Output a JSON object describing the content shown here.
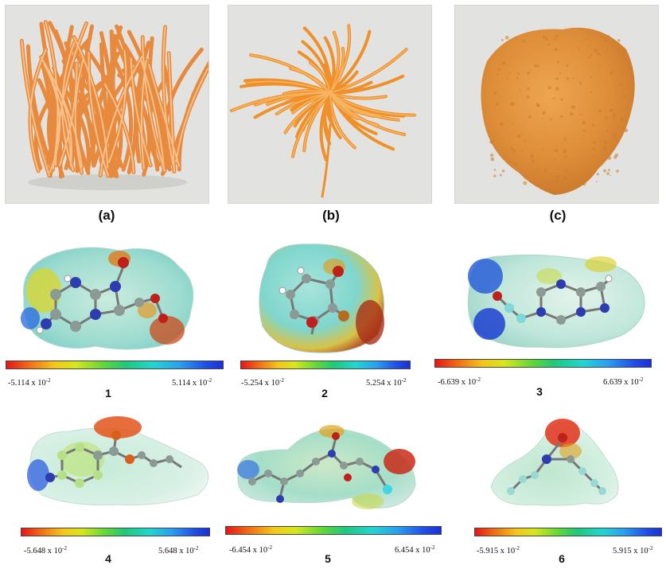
{
  "panels": [
    {
      "label": "(a)"
    },
    {
      "label": "(b)"
    },
    {
      "label": "(c)"
    }
  ],
  "molecules": [
    {
      "number": "1",
      "min_mantissa": "-5.114 x 10",
      "max_mantissa": "5.114 x 10",
      "exponent": "-2"
    },
    {
      "number": "2",
      "min_mantissa": "-5.254 x 10",
      "max_mantissa": "5.254 x 10",
      "exponent": "-2"
    },
    {
      "number": "3",
      "min_mantissa": "-6.639 x 10",
      "max_mantissa": "6.639 x 10",
      "exponent": "-2"
    },
    {
      "number": "4",
      "min_mantissa": "-5.648 x 10",
      "max_mantissa": "5.648 x 10",
      "exponent": "-2"
    },
    {
      "number": "5",
      "min_mantissa": "-6.454 x 10",
      "max_mantissa": "6.454 x 10",
      "exponent": "-2"
    },
    {
      "number": "6",
      "min_mantissa": "-5.915 x 10",
      "max_mantissa": "5.915 x 10",
      "exponent": "-2"
    }
  ],
  "colors": {
    "photo_background": "#e2e3e1",
    "cordyceps_orange": "#ec8a3c",
    "powder_orange": "#e0923e",
    "mep_negative": "#e8141a",
    "mep_neutral": "#5fd83a",
    "mep_positive": "#1a2fd8"
  },
  "icons": [
    "cordyceps-fruiting-bodies-image",
    "dried-cordyceps-image",
    "cordyceps-powder-image",
    "electrostatic-potential-map"
  ]
}
